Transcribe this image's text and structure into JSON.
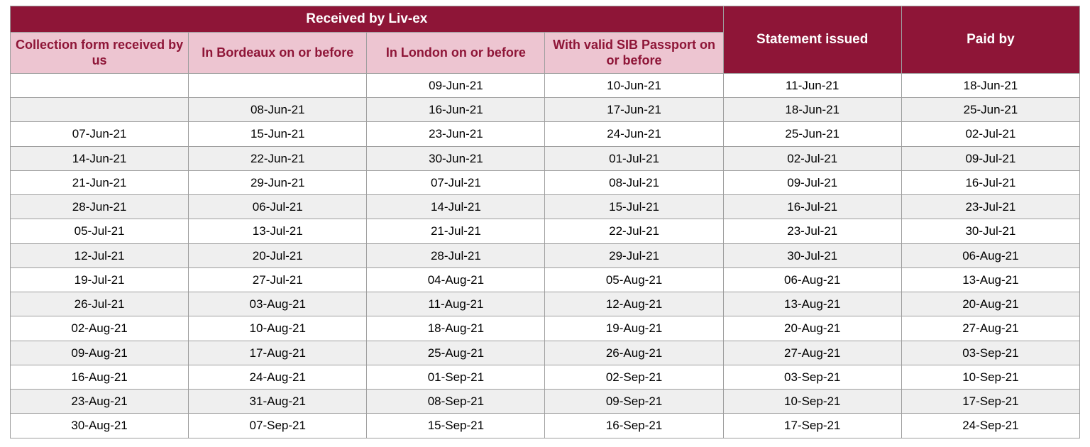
{
  "table": {
    "group_header": "Received by Liv-ex",
    "columns": [
      {
        "key": "c0",
        "label": "Collection form received by us",
        "cls": "hdr-light"
      },
      {
        "key": "c1",
        "label": "In Bordeaux on or before",
        "cls": "hdr-light"
      },
      {
        "key": "c2",
        "label": "In London on or before",
        "cls": "hdr-light"
      },
      {
        "key": "c3",
        "label": "With valid SIB Passport on or before",
        "cls": "hdr-light"
      },
      {
        "key": "c4",
        "label": "Statement issued",
        "cls": "hdr-dark"
      },
      {
        "key": "c5",
        "label": "Paid by",
        "cls": "hdr-dark"
      }
    ],
    "rows": [
      [
        "",
        "",
        "09-Jun-21",
        "10-Jun-21",
        "11-Jun-21",
        "18-Jun-21"
      ],
      [
        "",
        "08-Jun-21",
        "16-Jun-21",
        "17-Jun-21",
        "18-Jun-21",
        "25-Jun-21"
      ],
      [
        "07-Jun-21",
        "15-Jun-21",
        "23-Jun-21",
        "24-Jun-21",
        "25-Jun-21",
        "02-Jul-21"
      ],
      [
        "14-Jun-21",
        "22-Jun-21",
        "30-Jun-21",
        "01-Jul-21",
        "02-Jul-21",
        "09-Jul-21"
      ],
      [
        "21-Jun-21",
        "29-Jun-21",
        "07-Jul-21",
        "08-Jul-21",
        "09-Jul-21",
        "16-Jul-21"
      ],
      [
        "28-Jun-21",
        "06-Jul-21",
        "14-Jul-21",
        "15-Jul-21",
        "16-Jul-21",
        "23-Jul-21"
      ],
      [
        "05-Jul-21",
        "13-Jul-21",
        "21-Jul-21",
        "22-Jul-21",
        "23-Jul-21",
        "30-Jul-21"
      ],
      [
        "12-Jul-21",
        "20-Jul-21",
        "28-Jul-21",
        "29-Jul-21",
        "30-Jul-21",
        "06-Aug-21"
      ],
      [
        "19-Jul-21",
        "27-Jul-21",
        "04-Aug-21",
        "05-Aug-21",
        "06-Aug-21",
        "13-Aug-21"
      ],
      [
        "26-Jul-21",
        "03-Aug-21",
        "11-Aug-21",
        "12-Aug-21",
        "13-Aug-21",
        "20-Aug-21"
      ],
      [
        "02-Aug-21",
        "10-Aug-21",
        "18-Aug-21",
        "19-Aug-21",
        "20-Aug-21",
        "27-Aug-21"
      ],
      [
        "09-Aug-21",
        "17-Aug-21",
        "25-Aug-21",
        "26-Aug-21",
        "27-Aug-21",
        "03-Sep-21"
      ],
      [
        "16-Aug-21",
        "24-Aug-21",
        "01-Sep-21",
        "02-Sep-21",
        "03-Sep-21",
        "10-Sep-21"
      ],
      [
        "23-Aug-21",
        "31-Aug-21",
        "08-Sep-21",
        "09-Sep-21",
        "10-Sep-21",
        "17-Sep-21"
      ],
      [
        "30-Aug-21",
        "07-Sep-21",
        "15-Sep-21",
        "16-Sep-21",
        "17-Sep-21",
        "24-Sep-21"
      ]
    ],
    "colors": {
      "header_dark_bg": "#8e1537",
      "header_dark_fg": "#ffffff",
      "header_light_bg": "#edc5d1",
      "header_light_fg": "#8e1537",
      "row_alt_bg": "#efefef",
      "border": "#9e9e9e"
    }
  }
}
